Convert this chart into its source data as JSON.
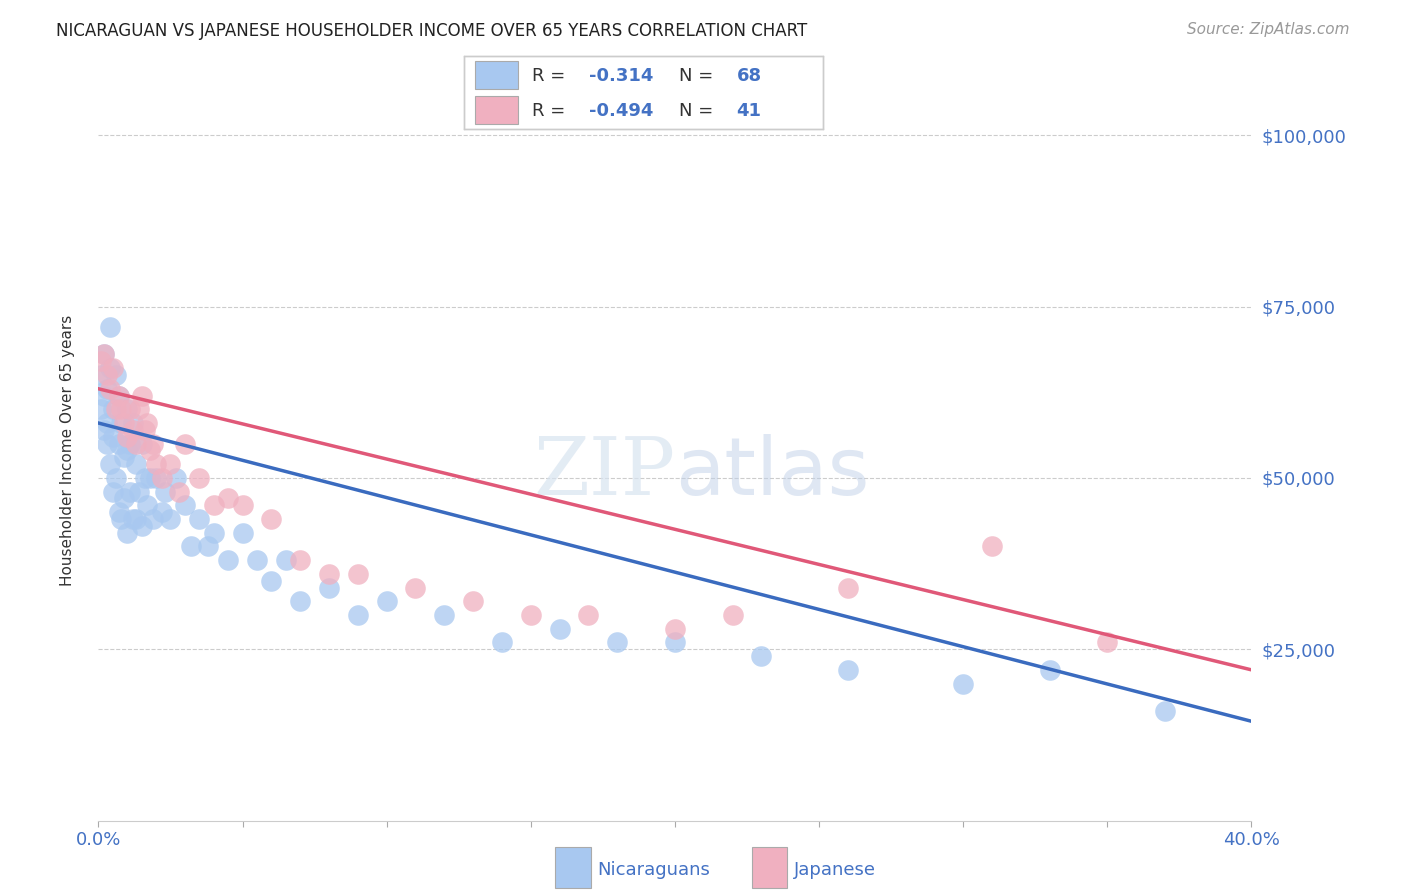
{
  "title": "NICARAGUAN VS JAPANESE HOUSEHOLDER INCOME OVER 65 YEARS CORRELATION CHART",
  "source": "Source: ZipAtlas.com",
  "ylabel": "Householder Income Over 65 years",
  "xlim": [
    0.0,
    0.4
  ],
  "ylim": [
    0,
    108000
  ],
  "yticks": [
    25000,
    50000,
    75000,
    100000
  ],
  "ytick_labels": [
    "$25,000",
    "$50,000",
    "$75,000",
    "$100,000"
  ],
  "bg_color": "#ffffff",
  "grid_color": "#cccccc",
  "title_color": "#333333",
  "source_color": "#999999",
  "blue_scatter_color": "#a8c8f0",
  "pink_scatter_color": "#f0b0c0",
  "blue_line_color": "#3a6bbf",
  "pink_line_color": "#e05878",
  "axis_color": "#4472c4",
  "blue_r": -0.314,
  "blue_n": 68,
  "pink_r": -0.494,
  "pink_n": 41,
  "blue_line_x0": 0.0,
  "blue_line_y0": 58000,
  "blue_line_x1": 0.4,
  "blue_line_y1": 14500,
  "pink_line_x0": 0.0,
  "pink_line_y0": 63000,
  "pink_line_x1": 0.4,
  "pink_line_y1": 22000,
  "nicaraguan_x": [
    0.001,
    0.001,
    0.002,
    0.002,
    0.002,
    0.003,
    0.003,
    0.003,
    0.004,
    0.004,
    0.004,
    0.005,
    0.005,
    0.005,
    0.006,
    0.006,
    0.007,
    0.007,
    0.007,
    0.008,
    0.008,
    0.009,
    0.009,
    0.01,
    0.01,
    0.01,
    0.011,
    0.011,
    0.012,
    0.012,
    0.013,
    0.013,
    0.014,
    0.015,
    0.015,
    0.016,
    0.017,
    0.018,
    0.019,
    0.02,
    0.022,
    0.023,
    0.025,
    0.027,
    0.03,
    0.032,
    0.035,
    0.038,
    0.04,
    0.045,
    0.05,
    0.055,
    0.06,
    0.065,
    0.07,
    0.08,
    0.09,
    0.1,
    0.12,
    0.14,
    0.16,
    0.18,
    0.2,
    0.23,
    0.26,
    0.3,
    0.33,
    0.37
  ],
  "nicaraguan_y": [
    65000,
    60000,
    68000,
    62000,
    57000,
    63000,
    58000,
    55000,
    72000,
    66000,
    52000,
    60000,
    56000,
    48000,
    65000,
    50000,
    62000,
    55000,
    45000,
    58000,
    44000,
    53000,
    47000,
    60000,
    54000,
    42000,
    55000,
    48000,
    58000,
    44000,
    52000,
    44000,
    48000,
    55000,
    43000,
    50000,
    46000,
    50000,
    44000,
    50000,
    45000,
    48000,
    44000,
    50000,
    46000,
    40000,
    44000,
    40000,
    42000,
    38000,
    42000,
    38000,
    35000,
    38000,
    32000,
    34000,
    30000,
    32000,
    30000,
    26000,
    28000,
    26000,
    26000,
    24000,
    22000,
    20000,
    22000,
    16000
  ],
  "japanese_x": [
    0.001,
    0.002,
    0.003,
    0.004,
    0.005,
    0.006,
    0.007,
    0.008,
    0.009,
    0.01,
    0.011,
    0.012,
    0.013,
    0.014,
    0.015,
    0.016,
    0.017,
    0.018,
    0.019,
    0.02,
    0.022,
    0.025,
    0.028,
    0.03,
    0.035,
    0.04,
    0.045,
    0.05,
    0.06,
    0.07,
    0.08,
    0.09,
    0.11,
    0.13,
    0.15,
    0.17,
    0.2,
    0.22,
    0.26,
    0.31,
    0.35
  ],
  "japanese_y": [
    67000,
    68000,
    65000,
    63000,
    66000,
    60000,
    62000,
    60000,
    58000,
    56000,
    60000,
    57000,
    55000,
    60000,
    62000,
    57000,
    58000,
    54000,
    55000,
    52000,
    50000,
    52000,
    48000,
    55000,
    50000,
    46000,
    47000,
    46000,
    44000,
    38000,
    36000,
    36000,
    34000,
    32000,
    30000,
    30000,
    28000,
    30000,
    34000,
    40000,
    26000
  ]
}
